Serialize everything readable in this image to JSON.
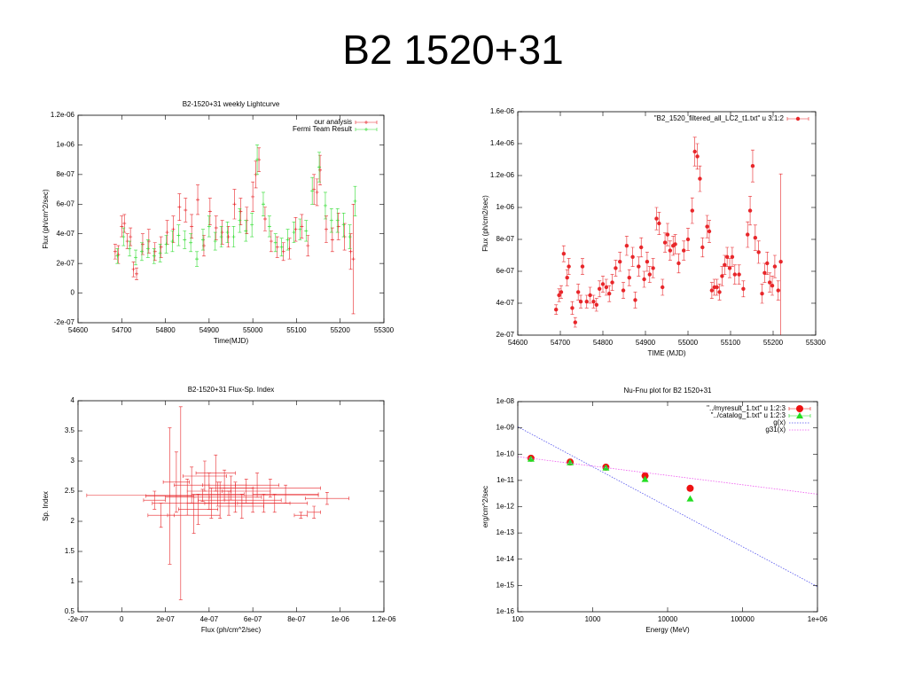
{
  "title": "B2 1520+31",
  "chart_data": [
    {
      "type": "scatter",
      "title": "B2-1520+31 weekly Lightcurve",
      "xlabel": "Time(MJD)",
      "ylabel": "Flux (ph/cm^2/sec)",
      "xlim": [
        54600,
        55300
      ],
      "xticks": [
        54600,
        54700,
        54800,
        54900,
        55000,
        55100,
        55200,
        55300
      ],
      "ylim": [
        -2e-07,
        1.2e-06
      ],
      "yticks": [
        {
          "value": -2e-07,
          "label": "-2e-07"
        },
        0,
        {
          "value": 2e-07,
          "label": "2e-07"
        },
        {
          "value": 4e-07,
          "label": "4e-07"
        },
        {
          "value": 6e-07,
          "label": "6e-07"
        },
        {
          "value": 8e-07,
          "label": "8e-07"
        },
        {
          "value": 1e-06,
          "label": "1e-06"
        },
        {
          "value": 1.2e-06,
          "label": "1.2e-06"
        }
      ],
      "legend": "top right",
      "series": [
        {
          "name": "our analysis",
          "color": "#e8262a",
          "marker": "cross",
          "x": [
            54685,
            54692,
            54700,
            54706,
            54713,
            54720,
            54727,
            54734,
            54748,
            54762,
            54776,
            54790,
            54804,
            54818,
            54832,
            54846,
            54860,
            54874,
            54888,
            54902,
            54916,
            54930,
            54944,
            54958,
            54972,
            54986,
            55000,
            55007,
            55014,
            55028,
            55042,
            55056,
            55070,
            55084,
            55098,
            55112,
            55126,
            55140,
            55147,
            55154,
            55168,
            55182,
            55196,
            55210,
            55224,
            55230
          ],
          "values": [
            2.8e-07,
            2.6e-07,
            4.5e-07,
            4.7e-07,
            3.5e-07,
            3.8e-07,
            1.6e-07,
            1.3e-07,
            3.3e-07,
            3.5e-07,
            2.8e-07,
            3.1e-07,
            4.1e-07,
            4.3e-07,
            5.8e-07,
            5.6e-07,
            4.5e-07,
            6.3e-07,
            3.2e-07,
            5.5e-07,
            4.4e-07,
            4.1e-07,
            3.8e-07,
            6e-07,
            5.5e-07,
            4.9e-07,
            6.5e-07,
            8e-07,
            9e-07,
            5e-07,
            3.5e-07,
            3.1e-07,
            2.8e-07,
            3e-07,
            4.3e-07,
            4.5e-07,
            3.2e-07,
            7e-07,
            6.8e-07,
            8.3e-07,
            4.3e-07,
            3.6e-07,
            4.5e-07,
            3.8e-07,
            2.8e-07,
            2.3e-07
          ],
          "errors": [
            5e-08,
            6e-08,
            7e-08,
            6e-08,
            5e-08,
            6e-08,
            5e-08,
            4e-08,
            7e-08,
            8e-08,
            6e-08,
            7e-08,
            8e-08,
            9e-08,
            9e-08,
            8e-08,
            8e-08,
            1e-07,
            7e-08,
            9e-08,
            8e-08,
            8e-08,
            7e-08,
            1e-07,
            9e-08,
            9e-08,
            1e-07,
            9e-08,
            8e-08,
            8e-08,
            7e-08,
            7e-08,
            6e-08,
            7e-08,
            8e-08,
            8e-08,
            7e-08,
            1e-07,
            9e-08,
            1e-07,
            9e-08,
            8e-08,
            9e-08,
            9e-08,
            1.2e-07,
            3.7e-07
          ]
        },
        {
          "name": "Fermi Team Result",
          "color": "#33dd33",
          "marker": "cross",
          "x": [
            54690,
            54704,
            54718,
            54732,
            54746,
            54760,
            54774,
            54788,
            54802,
            54816,
            54830,
            54844,
            54858,
            54872,
            54886,
            54900,
            54914,
            54928,
            54942,
            54956,
            54970,
            54984,
            54998,
            55010,
            55024,
            55038,
            55052,
            55066,
            55080,
            55094,
            55108,
            55122,
            55136,
            55152,
            55166,
            55180,
            55194,
            55208,
            55222,
            55234
          ],
          "values": [
            2.5e-07,
            3.8e-07,
            3e-07,
            2.4e-07,
            2.8e-07,
            3e-07,
            2.5e-07,
            2.7e-07,
            3.3e-07,
            3.5e-07,
            3.9e-07,
            3.6e-07,
            3.4e-07,
            2.3e-07,
            3.6e-07,
            4.5e-07,
            3.5e-07,
            3.8e-07,
            4.1e-07,
            3.8e-07,
            4.9e-07,
            4.2e-07,
            4.6e-07,
            9e-07,
            6e-07,
            4.5e-07,
            3.4e-07,
            3.1e-07,
            3.6e-07,
            4.1e-07,
            4.3e-07,
            4.2e-07,
            6.9e-07,
            8.5e-07,
            5.9e-07,
            4.9e-07,
            4.9e-07,
            4.6e-07,
            3.8e-07,
            6.2e-07
          ],
          "errors": [
            5e-08,
            6e-08,
            5e-08,
            5e-08,
            6e-08,
            6e-08,
            5e-08,
            6e-08,
            6e-08,
            7e-08,
            7e-08,
            6e-08,
            6e-08,
            5e-08,
            7e-08,
            7e-08,
            6e-08,
            7e-08,
            7e-08,
            7e-08,
            8e-08,
            7e-08,
            8e-08,
            1e-07,
            8e-08,
            7e-08,
            6e-08,
            6e-08,
            7e-08,
            7e-08,
            7e-08,
            7e-08,
            9e-08,
            1e-07,
            9e-08,
            8e-08,
            8e-08,
            8e-08,
            8e-08,
            1e-07
          ]
        }
      ]
    },
    {
      "type": "scatter",
      "xlabel": "TIME (MJD)",
      "ylabel": "Flux (ph/cm2/sec)",
      "xlim": [
        54600,
        55300
      ],
      "xticks": [
        54600,
        54700,
        54800,
        54900,
        55000,
        55100,
        55200,
        55300
      ],
      "ylim": [
        2e-07,
        1.6e-06
      ],
      "yticks": [
        {
          "value": 2e-07,
          "label": "2e-07"
        },
        {
          "value": 4e-07,
          "label": "4e-07"
        },
        {
          "value": 6e-07,
          "label": "6e-07"
        },
        {
          "value": 8e-07,
          "label": "8e-07"
        },
        {
          "value": 1e-06,
          "label": "1e-06"
        },
        {
          "value": 1.2e-06,
          "label": "1.2e-06"
        },
        {
          "value": 1.4e-06,
          "label": "1.4e-06"
        },
        {
          "value": 1.6e-06,
          "label": "1.6e-06"
        }
      ],
      "legend": "top right",
      "series": [
        {
          "name": "\"B2_1520_filtered_all_LC2_t1.txt\" u 3:1:2",
          "color": "#e8262a",
          "marker": "dot",
          "x": [
            54690,
            54697,
            54702,
            54708,
            54716,
            54720,
            54728,
            54735,
            54742,
            54748,
            54752,
            54762,
            54770,
            54778,
            54785,
            54792,
            54800,
            54808,
            54815,
            54822,
            54830,
            54840,
            54848,
            54856,
            54862,
            54870,
            54876,
            54884,
            54890,
            54897,
            54904,
            54910,
            54918,
            54926,
            54932,
            54940,
            54946,
            54952,
            54958,
            54965,
            54970,
            54978,
            54990,
            55000,
            55010,
            55016,
            55022,
            55028,
            55034,
            55045,
            55050,
            55056,
            55062,
            55068,
            55074,
            55080,
            55086,
            55092,
            55098,
            55104,
            55110,
            55120,
            55130,
            55140,
            55146,
            55152,
            55158,
            55166,
            55174,
            55180,
            55186,
            55192,
            55198,
            55204,
            55212,
            55218
          ],
          "values": [
            3.6e-07,
            4.5e-07,
            4.7e-07,
            7.1e-07,
            5.6e-07,
            6.3e-07,
            3.7e-07,
            2.8e-07,
            4.7e-07,
            4.1e-07,
            6.3e-07,
            4.1e-07,
            4.5e-07,
            4.1e-07,
            3.9e-07,
            4.9e-07,
            5.2e-07,
            5e-07,
            4.6e-07,
            5.3e-07,
            6.2e-07,
            6.6e-07,
            4.8e-07,
            7.6e-07,
            5.6e-07,
            6.9e-07,
            4.2e-07,
            6.3e-07,
            7.5e-07,
            5.5e-07,
            6.6e-07,
            5.8e-07,
            6.2e-07,
            9.3e-07,
            9e-07,
            5e-07,
            7.8e-07,
            8.3e-07,
            7.3e-07,
            7.6e-07,
            7.7e-07,
            6.5e-07,
            7.3e-07,
            8e-07,
            9.8e-07,
            1.35e-06,
            1.32e-06,
            1.18e-06,
            7.5e-07,
            8.8e-07,
            8.5e-07,
            4.8e-07,
            5e-07,
            5e-07,
            4.7e-07,
            5.7e-07,
            6.4e-07,
            6.9e-07,
            6.2e-07,
            6.9e-07,
            5.8e-07,
            5.8e-07,
            4.9e-07,
            8.3e-07,
            9.8e-07,
            1.26e-06,
            8.1e-07,
            7.2e-07,
            4.6e-07,
            5.9e-07,
            6.5e-07,
            5.3e-07,
            5.1e-07,
            6.3e-07,
            4.8e-07,
            6.6e-07
          ],
          "errors": [
            3e-08,
            4e-08,
            4e-08,
            5e-08,
            5e-08,
            5e-08,
            4e-08,
            3e-08,
            5e-08,
            4e-08,
            5e-08,
            4e-08,
            5e-08,
            4e-08,
            4e-08,
            5e-08,
            5e-08,
            5e-08,
            5e-08,
            5e-08,
            5e-08,
            6e-08,
            5e-08,
            6e-08,
            5e-08,
            6e-08,
            5e-08,
            6e-08,
            6e-08,
            5e-08,
            6e-08,
            5e-08,
            6e-08,
            7e-08,
            7e-08,
            5e-08,
            6e-08,
            7e-08,
            6e-08,
            6e-08,
            6e-08,
            6e-08,
            6e-08,
            7e-08,
            8e-08,
            9e-08,
            8e-08,
            8e-08,
            6e-08,
            7e-08,
            7e-08,
            5e-08,
            5e-08,
            5e-08,
            5e-08,
            6e-08,
            6e-08,
            6e-08,
            6e-08,
            6e-08,
            6e-08,
            6e-08,
            5e-08,
            8e-08,
            9e-08,
            1e-07,
            8e-08,
            7e-08,
            6e-08,
            6e-08,
            7e-08,
            6e-08,
            6e-08,
            7e-08,
            6e-08,
            5.5e-07
          ]
        }
      ]
    },
    {
      "type": "scatter",
      "title": "B2-1520+31 Flux-Sp. Index",
      "xlabel": "Flux (ph/cm^2/sec)",
      "ylabel": "Sp. Index",
      "xlim": [
        -2e-07,
        1.2e-06
      ],
      "xticks": [
        {
          "value": -2e-07,
          "label": "-2e-07"
        },
        0,
        {
          "value": 2e-07,
          "label": "2e-07"
        },
        {
          "value": 4e-07,
          "label": "4e-07"
        },
        {
          "value": 6e-07,
          "label": "6e-07"
        },
        {
          "value": 8e-07,
          "label": "8e-07"
        },
        {
          "value": 1e-06,
          "label": "1e-06"
        },
        {
          "value": 1.2e-06,
          "label": "1.2e-06"
        }
      ],
      "ylim": [
        0.5,
        4
      ],
      "yticks": [
        0.5,
        1,
        1.5,
        2,
        2.5,
        3,
        3.5,
        4
      ],
      "series": [
        {
          "color": "#e8262a",
          "marker": "none",
          "x": [
            1.5e-07,
            1.8e-07,
            2.2e-07,
            2.7e-07,
            3e-07,
            3.2e-07,
            3.5e-07,
            3.7e-07,
            3.8e-07,
            4e-07,
            4.1e-07,
            4.3e-07,
            4.4e-07,
            4.5e-07,
            4.7e-07,
            4.9e-07,
            5e-07,
            5.2e-07,
            5.5e-07,
            5.7e-07,
            6e-07,
            6.2e-07,
            6.5e-07,
            6.8e-07,
            7e-07,
            7.5e-07,
            8.2e-07,
            8.8e-07,
            9.4e-07,
            3.3e-07,
            2.5e-07
          ],
          "xerrors": [
            5e-08,
            6e-08,
            1.1e-07,
            1.3e-07,
            1e-07,
            8e-08,
            9e-08,
            5.3e-07,
            1e-07,
            1e-07,
            1.1e-07,
            9e-08,
            1.2e-07,
            1e-07,
            1e-07,
            1.1e-07,
            1e-07,
            1.2e-07,
            1e-07,
            1.1e-07,
            1.3e-07,
            1e-07,
            1.2e-07,
            2.3e-07,
            1.5e-07,
            1.5e-07,
            3e-08,
            3e-08,
            1e-07,
            1.2e-07,
            6e-08
          ],
          "values": [
            2.35,
            2.1,
            2.42,
            2.3,
            2.4,
            2.6,
            2.2,
            2.43,
            2.75,
            2.5,
            2.3,
            2.8,
            2.45,
            2.35,
            2.6,
            2.3,
            2.55,
            2.4,
            2.25,
            2.5,
            2.35,
            2.6,
            2.3,
            2.55,
            2.3,
            2.45,
            2.1,
            2.15,
            2.38,
            2.1,
            2.65
          ],
          "errors": [
            0.15,
            0.2,
            1.13,
            1.6,
            0.3,
            0.3,
            0.25,
            0.1,
            0.25,
            0.3,
            0.25,
            0.3,
            0.2,
            0.3,
            0.25,
            0.2,
            0.2,
            0.25,
            0.2,
            0.2,
            0.2,
            0.2,
            0.15,
            0.15,
            0.15,
            0.15,
            0.05,
            0.1,
            0.1,
            0.3,
            0.5
          ]
        }
      ]
    },
    {
      "type": "scatter",
      "title": "Nu-Fnu plot for B2 1520+31",
      "xlabel": "Energy (MeV)",
      "ylabel": "erg/cm^2/sec",
      "xscale": "log",
      "yscale": "log",
      "xlim": [
        100,
        1000000
      ],
      "xticks": [
        100,
        1000,
        10000,
        100000,
        {
          "value": 1000000,
          "label": "1e+06"
        }
      ],
      "ylim": [
        1e-16,
        1e-08
      ],
      "yticks": [
        {
          "value": 1e-16,
          "label": "1e-16"
        },
        {
          "value": 1e-15,
          "label": "1e-15"
        },
        {
          "value": 1e-14,
          "label": "1e-14"
        },
        {
          "value": 1e-13,
          "label": "1e-13"
        },
        {
          "value": 1e-12,
          "label": "1e-12"
        },
        {
          "value": 1e-11,
          "label": "1e-11"
        },
        {
          "value": 1e-10,
          "label": "1e-10"
        },
        {
          "value": 1e-09,
          "label": "1e-09"
        },
        {
          "value": 1e-08,
          "label": "1e-08"
        }
      ],
      "legend": "top right",
      "series": [
        {
          "name": "\"../myresult_1.txt\" u 1:2:3",
          "color": "#ee1111",
          "marker": "circle",
          "x": [
            150,
            500,
            1500,
            5000,
            20000
          ],
          "values": [
            7e-11,
            5e-11,
            3.2e-11,
            1.5e-11,
            5e-12
          ]
        },
        {
          "name": "\"../catalog_1.txt\" u 1:2:3",
          "color": "#22dd22",
          "marker": "triangle",
          "x": [
            150,
            500,
            1500,
            5000,
            20000
          ],
          "values": [
            6.5e-11,
            4.8e-11,
            3e-11,
            1.1e-11,
            2e-12
          ]
        },
        {
          "name": "g(x)",
          "color": "#5555ee",
          "line": "dotted",
          "x": [
            100,
            1000000
          ],
          "values": [
            1.1e-09,
            9e-16
          ]
        },
        {
          "name": "g31(x)",
          "color": "#ee55ee",
          "line": "dotted",
          "x": [
            100,
            1000000
          ],
          "values": [
            8e-11,
            3e-12
          ]
        }
      ]
    }
  ]
}
